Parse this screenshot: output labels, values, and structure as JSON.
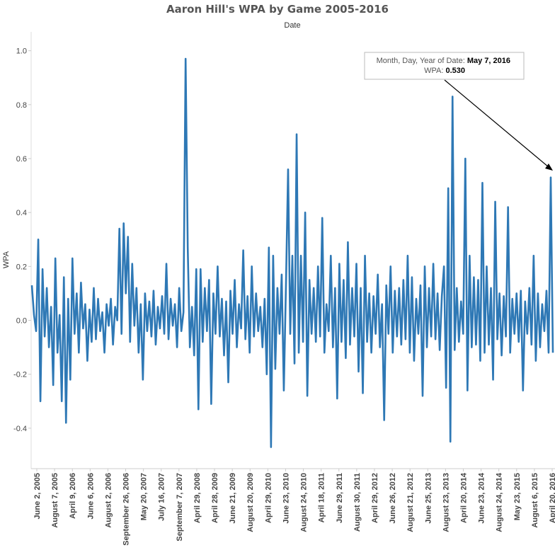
{
  "chart_data": {
    "type": "line",
    "title": "Aaron Hill's WPA by Game 2005-2016",
    "xlabel": "Date",
    "ylabel": "WPA",
    "ylim": [
      -0.55,
      1.07
    ],
    "yticks": [
      "1.0",
      "0.8",
      "0.6",
      "0.4",
      "0.2",
      "0.0",
      "-0.2",
      "-0.4"
    ],
    "ytick_values": [
      1.0,
      0.8,
      0.6,
      0.4,
      0.2,
      0.0,
      -0.2,
      -0.4
    ],
    "xticks": [
      "June 2, 2005",
      "August 7, 2005",
      "April 9, 2006",
      "June 6, 2006",
      "August 2, 2006",
      "September 26, 2006",
      "May 20, 2007",
      "July 16, 2007",
      "September 7, 2007",
      "April 29, 2008",
      "April 28, 2009",
      "June 21, 2009",
      "August 20, 2009",
      "April 29, 2010",
      "June 23, 2010",
      "August 24, 2010",
      "April 18, 2011",
      "June 29, 2011",
      "August 30, 2011",
      "April 29, 2012",
      "June 26, 2012",
      "August 21, 2012",
      "June 25, 2013",
      "August 23, 2013",
      "April 20, 2014",
      "June 23, 2014",
      "August 24, 2014",
      "May 23, 2015",
      "August 6, 2015",
      "April 20, 2016"
    ],
    "grid": false,
    "series": [
      {
        "values": [
          0.13,
          0.02,
          -0.04,
          0.3,
          -0.3,
          0.19,
          -0.06,
          0.12,
          -0.1,
          0.05,
          -0.24,
          0.23,
          -0.12,
          0.02,
          -0.3,
          0.16,
          -0.38,
          0.08,
          -0.22,
          0.23,
          -0.05,
          0.1,
          -0.12,
          0.14,
          -0.03,
          0.06,
          -0.15,
          0.04,
          -0.08,
          0.12,
          -0.07,
          0.08,
          -0.04,
          0.03,
          -0.12,
          0.06,
          -0.02,
          0.08,
          -0.09,
          0.05,
          0.0,
          0.34,
          -0.05,
          0.36,
          0.1,
          0.31,
          -0.08,
          0.21,
          -0.02,
          0.12,
          -0.12,
          0.06,
          -0.22,
          0.1,
          -0.04,
          0.07,
          -0.06,
          0.11,
          -0.09,
          0.05,
          -0.03,
          0.09,
          -0.05,
          0.21,
          -0.07,
          0.08,
          -0.02,
          0.06,
          -0.1,
          0.12,
          -0.04,
          0.03,
          0.97,
          0.27,
          -0.1,
          0.05,
          -0.13,
          0.19,
          -0.33,
          0.19,
          -0.08,
          0.12,
          -0.04,
          0.15,
          -0.31,
          0.1,
          -0.05,
          0.2,
          -0.06,
          0.08,
          -0.13,
          0.07,
          -0.23,
          0.11,
          -0.05,
          0.15,
          -0.1,
          0.06,
          -0.03,
          0.26,
          -0.07,
          0.09,
          -0.12,
          0.2,
          -0.06,
          0.1,
          -0.04,
          0.05,
          -0.1,
          0.08,
          -0.2,
          0.27,
          -0.47,
          0.24,
          -0.18,
          0.12,
          -0.05,
          0.17,
          -0.26,
          0.13,
          0.56,
          -0.05,
          0.24,
          -0.16,
          0.69,
          -0.12,
          0.24,
          -0.08,
          0.4,
          -0.28,
          0.15,
          -0.05,
          0.12,
          -0.08,
          0.2,
          -0.06,
          0.38,
          -0.12,
          0.06,
          -0.04,
          0.24,
          -0.1,
          0.12,
          -0.29,
          0.21,
          -0.08,
          0.15,
          -0.14,
          0.29,
          -0.09,
          0.12,
          -0.06,
          0.21,
          -0.19,
          0.12,
          -0.27,
          0.24,
          -0.08,
          0.1,
          -0.12,
          0.09,
          -0.05,
          0.17,
          -0.1,
          0.06,
          -0.37,
          0.13,
          -0.05,
          0.2,
          -0.12,
          0.11,
          -0.06,
          0.12,
          -0.09,
          0.15,
          -0.07,
          0.24,
          -0.12,
          0.16,
          -0.15,
          0.08,
          -0.05,
          0.13,
          -0.28,
          0.2,
          -0.1,
          0.12,
          -0.06,
          0.21,
          -0.07,
          0.1,
          -0.11,
          0.09,
          0.2,
          -0.25,
          0.49,
          -0.45,
          0.83,
          -0.11,
          0.12,
          -0.08,
          0.07,
          -0.05,
          0.6,
          -0.26,
          0.24,
          -0.1,
          0.16,
          -0.09,
          0.15,
          -0.15,
          0.51,
          -0.12,
          0.2,
          -0.09,
          0.12,
          -0.22,
          0.44,
          -0.07,
          0.1,
          -0.13,
          0.09,
          -0.06,
          0.42,
          -0.12,
          0.08,
          -0.05,
          0.1,
          -0.08,
          0.11,
          -0.26,
          0.07,
          -0.05,
          0.12,
          -0.09,
          0.24,
          -0.15,
          0.1,
          -0.1,
          0.06,
          -0.04,
          0.11,
          -0.12,
          0.53,
          -0.12
        ]
      }
    ],
    "color": "#2e78b5",
    "annotation": {
      "label1": "Month, Day, Year of Date:",
      "value1": "May 7, 2016",
      "label2": "WPA:",
      "value2": "0.530"
    }
  }
}
